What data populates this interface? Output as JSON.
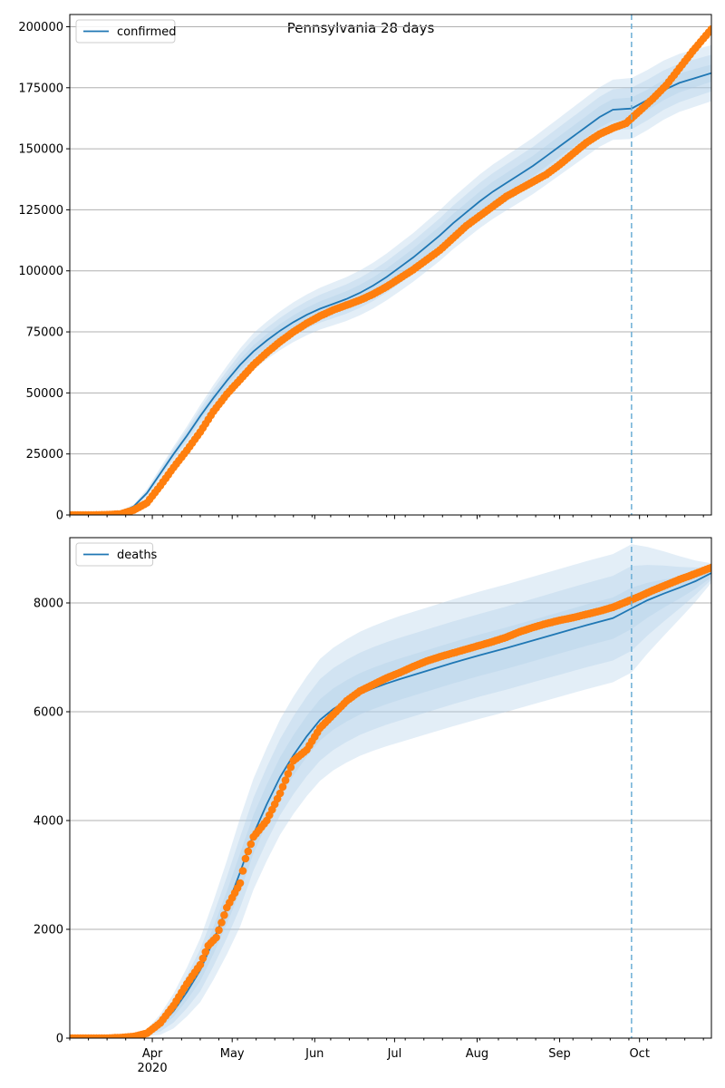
{
  "title": "Pennsylvania 28 days",
  "x_tick_labels": [
    "Apr",
    "May",
    "Jun",
    "Jul",
    "Aug",
    "Sep",
    "Oct"
  ],
  "x_year_label": "2020",
  "colors": {
    "model_line": "#1f77b4",
    "observed_points": "#ff7f0e",
    "band": "#aecde8",
    "vline": "#6baed6",
    "grid": "#b0b0b0"
  },
  "chart_data": [
    {
      "type": "line",
      "title": "Pennsylvania 28 days",
      "legend": "confirmed",
      "legend_position": "top-left",
      "grid": "horizontal",
      "xlim": [
        "2020-03-01",
        "2020-10-28"
      ],
      "ylim": [
        0,
        205000
      ],
      "y_ticks": [
        0,
        25000,
        50000,
        75000,
        100000,
        125000,
        150000,
        175000,
        200000
      ],
      "y_tick_labels": [
        "0",
        "25000",
        "50000",
        "75000",
        "100000",
        "125000",
        "150000",
        "175000",
        "200000"
      ],
      "forecast_start": "2020-09-28",
      "model": {
        "x": [
          "2020-03-01",
          "2020-03-10",
          "2020-03-15",
          "2020-03-20",
          "2020-03-25",
          "2020-03-30",
          "2020-04-04",
          "2020-04-09",
          "2020-04-14",
          "2020-04-19",
          "2020-04-24",
          "2020-04-29",
          "2020-05-04",
          "2020-05-09",
          "2020-05-14",
          "2020-05-19",
          "2020-05-24",
          "2020-05-29",
          "2020-06-03",
          "2020-06-08",
          "2020-06-13",
          "2020-06-18",
          "2020-06-23",
          "2020-06-28",
          "2020-07-03",
          "2020-07-08",
          "2020-07-13",
          "2020-07-18",
          "2020-07-23",
          "2020-07-28",
          "2020-08-02",
          "2020-08-07",
          "2020-08-12",
          "2020-08-17",
          "2020-08-22",
          "2020-08-27",
          "2020-09-01",
          "2020-09-06",
          "2020-09-11",
          "2020-09-16",
          "2020-09-21",
          "2020-09-28",
          "2020-10-04",
          "2020-10-10",
          "2020-10-16",
          "2020-10-22",
          "2020-10-28"
        ],
        "y": [
          0,
          0,
          200,
          1000,
          3500,
          9000,
          17000,
          25000,
          32500,
          40500,
          48000,
          55000,
          61500,
          67000,
          71500,
          75500,
          79000,
          82000,
          84500,
          86500,
          88500,
          91000,
          94000,
          97500,
          101500,
          105500,
          110000,
          114500,
          119500,
          124000,
          128500,
          132500,
          136000,
          139500,
          143000,
          147000,
          151000,
          155000,
          159000,
          163000,
          166000,
          166500,
          170000,
          174000,
          177000,
          179000,
          181000
        ]
      },
      "bands_halfwidth": {
        "x": [
          "2020-03-01",
          "2020-03-25",
          "2020-04-14",
          "2020-05-09",
          "2020-06-13",
          "2020-08-02",
          "2020-09-28",
          "2020-10-28"
        ],
        "inner": [
          0,
          300,
          1200,
          2500,
          3200,
          4000,
          4500,
          3500
        ],
        "middle": [
          0,
          600,
          2500,
          5000,
          6000,
          7500,
          8500,
          7500
        ],
        "outer": [
          0,
          900,
          3800,
          7500,
          9000,
          11000,
          12500,
          11500
        ]
      },
      "observed": {
        "x": [
          "2020-03-01",
          "2020-03-10",
          "2020-03-15",
          "2020-03-20",
          "2020-03-25",
          "2020-03-30",
          "2020-04-04",
          "2020-04-09",
          "2020-04-14",
          "2020-04-19",
          "2020-04-24",
          "2020-04-29",
          "2020-05-04",
          "2020-05-09",
          "2020-05-14",
          "2020-05-19",
          "2020-05-24",
          "2020-05-29",
          "2020-06-03",
          "2020-06-08",
          "2020-06-13",
          "2020-06-18",
          "2020-06-23",
          "2020-06-28",
          "2020-07-03",
          "2020-07-08",
          "2020-07-13",
          "2020-07-18",
          "2020-07-23",
          "2020-07-28",
          "2020-08-02",
          "2020-08-07",
          "2020-08-12",
          "2020-08-17",
          "2020-08-22",
          "2020-08-27",
          "2020-09-01",
          "2020-09-06",
          "2020-09-11",
          "2020-09-16",
          "2020-09-21",
          "2020-09-26",
          "2020-10-01",
          "2020-10-06",
          "2020-10-11",
          "2020-10-16",
          "2020-10-21",
          "2020-10-28"
        ],
        "y": [
          0,
          0,
          100,
          400,
          2000,
          5000,
          12000,
          19500,
          26500,
          34000,
          42500,
          49500,
          55500,
          61500,
          66500,
          71000,
          75000,
          78500,
          81500,
          84000,
          86000,
          88000,
          90500,
          93500,
          97000,
          100500,
          104500,
          108500,
          113500,
          118500,
          122500,
          126500,
          130500,
          133500,
          136500,
          139500,
          143500,
          148000,
          152500,
          156000,
          158500,
          160500,
          165500,
          170500,
          176000,
          183000,
          190000,
          199000
        ]
      }
    },
    {
      "type": "line",
      "legend": "deaths",
      "legend_position": "top-left",
      "grid": "horizontal",
      "xlim": [
        "2020-03-01",
        "2020-10-28"
      ],
      "ylim": [
        0,
        9200
      ],
      "y_ticks": [
        0,
        2000,
        4000,
        6000,
        8000
      ],
      "y_tick_labels": [
        "0",
        "2000",
        "4000",
        "6000",
        "8000"
      ],
      "forecast_start": "2020-09-28",
      "model": {
        "x": [
          "2020-03-01",
          "2020-03-15",
          "2020-03-20",
          "2020-03-25",
          "2020-03-30",
          "2020-04-04",
          "2020-04-09",
          "2020-04-14",
          "2020-04-19",
          "2020-04-24",
          "2020-04-29",
          "2020-05-04",
          "2020-05-09",
          "2020-05-14",
          "2020-05-19",
          "2020-05-24",
          "2020-05-29",
          "2020-06-03",
          "2020-06-08",
          "2020-06-13",
          "2020-06-18",
          "2020-06-23",
          "2020-06-28",
          "2020-07-03",
          "2020-07-13",
          "2020-07-23",
          "2020-08-02",
          "2020-08-12",
          "2020-08-22",
          "2020-09-01",
          "2020-09-11",
          "2020-09-21",
          "2020-09-28",
          "2020-10-04",
          "2020-10-10",
          "2020-10-16",
          "2020-10-22",
          "2020-10-28"
        ],
        "y": [
          0,
          0,
          10,
          40,
          100,
          250,
          500,
          850,
          1250,
          1800,
          2400,
          3050,
          3750,
          4300,
          4800,
          5200,
          5550,
          5850,
          6050,
          6200,
          6330,
          6430,
          6520,
          6600,
          6750,
          6900,
          7040,
          7170,
          7310,
          7450,
          7590,
          7720,
          7900,
          8050,
          8170,
          8280,
          8400,
          8550
        ]
      },
      "bands_halfwidth": {
        "x": [
          "2020-03-01",
          "2020-03-30",
          "2020-04-14",
          "2020-05-04",
          "2020-06-03",
          "2020-07-03",
          "2020-08-02",
          "2020-09-28",
          "2020-10-28"
        ],
        "inner": [
          0,
          20,
          150,
          350,
          380,
          380,
          380,
          380,
          80
        ],
        "middle": [
          0,
          40,
          300,
          650,
          750,
          760,
          760,
          780,
          120
        ],
        "outer": [
          0,
          60,
          450,
          1000,
          1120,
          1160,
          1170,
          1180,
          180
        ]
      },
      "observed": {
        "x": [
          "2020-03-01",
          "2020-03-15",
          "2020-03-20",
          "2020-03-25",
          "2020-03-30",
          "2020-04-04",
          "2020-04-09",
          "2020-04-14",
          "2020-04-19",
          "2020-04-22",
          "2020-04-25",
          "2020-04-29",
          "2020-05-04",
          "2020-05-06",
          "2020-05-09",
          "2020-05-14",
          "2020-05-19",
          "2020-05-24",
          "2020-05-29",
          "2020-06-03",
          "2020-06-08",
          "2020-06-13",
          "2020-06-18",
          "2020-06-23",
          "2020-06-28",
          "2020-07-03",
          "2020-07-08",
          "2020-07-13",
          "2020-07-18",
          "2020-07-23",
          "2020-07-28",
          "2020-08-02",
          "2020-08-07",
          "2020-08-12",
          "2020-08-17",
          "2020-08-22",
          "2020-08-27",
          "2020-09-01",
          "2020-09-06",
          "2020-09-11",
          "2020-09-16",
          "2020-09-21",
          "2020-09-26",
          "2020-10-01",
          "2020-10-06",
          "2020-10-11",
          "2020-10-16",
          "2020-10-21",
          "2020-10-28"
        ],
        "y": [
          0,
          0,
          10,
          30,
          90,
          280,
          600,
          1000,
          1350,
          1700,
          1850,
          2400,
          2850,
          3300,
          3700,
          4000,
          4500,
          5100,
          5300,
          5700,
          5950,
          6200,
          6380,
          6500,
          6620,
          6720,
          6830,
          6930,
          7010,
          7080,
          7150,
          7220,
          7290,
          7370,
          7470,
          7550,
          7620,
          7680,
          7730,
          7790,
          7850,
          7920,
          8020,
          8120,
          8230,
          8330,
          8430,
          8520,
          8650
        ]
      }
    }
  ]
}
